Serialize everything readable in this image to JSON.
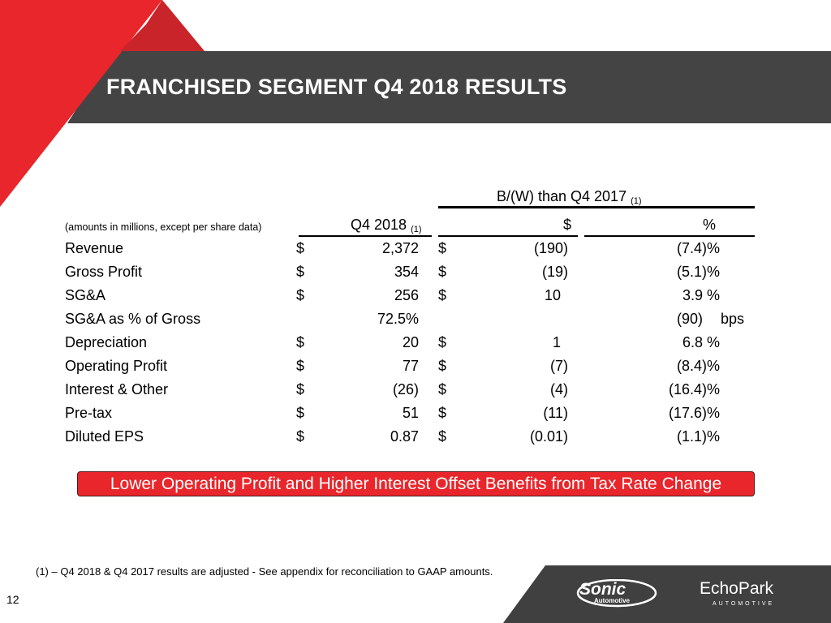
{
  "header": {
    "title": "FRANCHISED SEGMENT Q4 2018 RESULTS"
  },
  "table": {
    "note": "(amounts in millions, except per share data)",
    "group_header": "B/(W) than Q4 2017",
    "group_header_sup": "(1)",
    "col_q4": "Q4 2018",
    "col_q4_sup": "(1)",
    "col_dollar": "$",
    "col_pct": "%",
    "rows": [
      {
        "label": "Revenue",
        "d1": "$",
        "v1": "2,372",
        "d2": "$",
        "v2": "(190)",
        "v3": "(7.4)%"
      },
      {
        "label": "Gross Profit",
        "d1": "$",
        "v1": "354",
        "d2": "$",
        "v2": "(19)",
        "v3": "(5.1)%"
      },
      {
        "label": "SG&A",
        "d1": "$",
        "v1": "256",
        "d2": "$",
        "v2": "10",
        "v3": "3.9 %"
      },
      {
        "label": "SG&A as % of Gross",
        "d1": "",
        "v1": "72.5%",
        "d2": "",
        "v2": "",
        "v3": "(90)",
        "unit": "bps"
      },
      {
        "label": "Depreciation",
        "d1": "$",
        "v1": "20",
        "d2": "$",
        "v2": "1",
        "v3": "6.8 %"
      },
      {
        "label": "Operating Profit",
        "d1": "$",
        "v1": "77",
        "d2": "$",
        "v2": "(7)",
        "v3": "(8.4)%"
      },
      {
        "label": "Interest & Other",
        "d1": "$",
        "v1": "(26)",
        "d2": "$",
        "v2": "(4)",
        "v3": "(16.4)%"
      },
      {
        "label": "Pre-tax",
        "d1": "$",
        "v1": "51",
        "d2": "$",
        "v2": "(11)",
        "v3": "(17.6)%"
      },
      {
        "label": "Diluted EPS",
        "d1": "$",
        "v1": "0.87",
        "d2": "$",
        "v2": "(0.01)",
        "v3": "(1.1)%"
      }
    ]
  },
  "callout": "Lower Operating Profit and Higher Interest Offset Benefits from Tax Rate Change",
  "footnote": "(1) – Q4 2018 & Q4 2017 results are adjusted - See appendix for reconciliation to GAAP amounts.",
  "page_number": "12",
  "logos": {
    "sonic": "Sonic",
    "sonic_sub": "Automotive",
    "echopark": "EchoPark",
    "echopark_sub": "AUTOMOTIVE"
  },
  "colors": {
    "red": "#e8262b",
    "dark_red": "#c9242a",
    "band": "#444444"
  }
}
